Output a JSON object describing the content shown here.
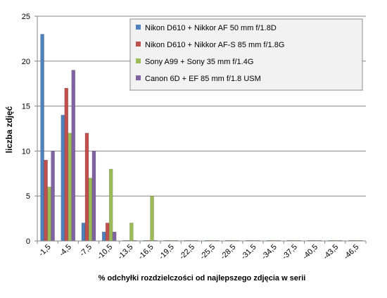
{
  "chart_data": {
    "type": "bar",
    "xlabel": "% odchyłki  rozdzielczości  od najlepszego  zdjęcia  w serii",
    "ylabel": "liczba zdjęć",
    "ylim": [
      0,
      25
    ],
    "yticks": [
      0,
      5,
      10,
      15,
      20,
      25
    ],
    "grid": true,
    "legend_position": "top-right",
    "categories": [
      "-1,5",
      "-4,5",
      "-7,5",
      "-10,5",
      "-13,5",
      "-16,5",
      "-19,5",
      "-22,5",
      "-25,5",
      "-28,5",
      "-31,5",
      "-34,5",
      "-37,5",
      "-40,5",
      "-43,5",
      "-46,5"
    ],
    "series": [
      {
        "name": "Nikon D610 + Nikkor AF 50 mm f/1.8D",
        "color": "#4f81bd",
        "values": [
          23,
          14,
          2,
          1,
          0,
          0,
          0,
          0,
          0,
          0,
          0,
          0,
          0,
          0,
          0,
          0
        ]
      },
      {
        "name": "Nikon D610 + Nikkor AF-S 85 mm f/1.8G",
        "color": "#c0504d",
        "values": [
          9,
          17,
          12,
          2,
          0,
          0,
          0,
          0,
          0,
          0,
          0,
          0,
          0,
          0,
          0,
          0
        ]
      },
      {
        "name": "Sony A99 + Sony 35 mm f/1.4G",
        "color": "#9bbb59",
        "values": [
          6,
          12,
          7,
          8,
          2,
          5,
          0,
          0,
          0,
          0,
          0,
          0,
          0,
          0,
          0,
          0
        ]
      },
      {
        "name": "Canon 6D + EF 85 mm f/1.8 USM",
        "color": "#8064a2",
        "values": [
          10,
          19,
          10,
          1,
          0,
          0,
          0,
          0,
          0,
          0,
          0,
          0,
          0,
          0,
          0,
          0
        ]
      }
    ]
  }
}
